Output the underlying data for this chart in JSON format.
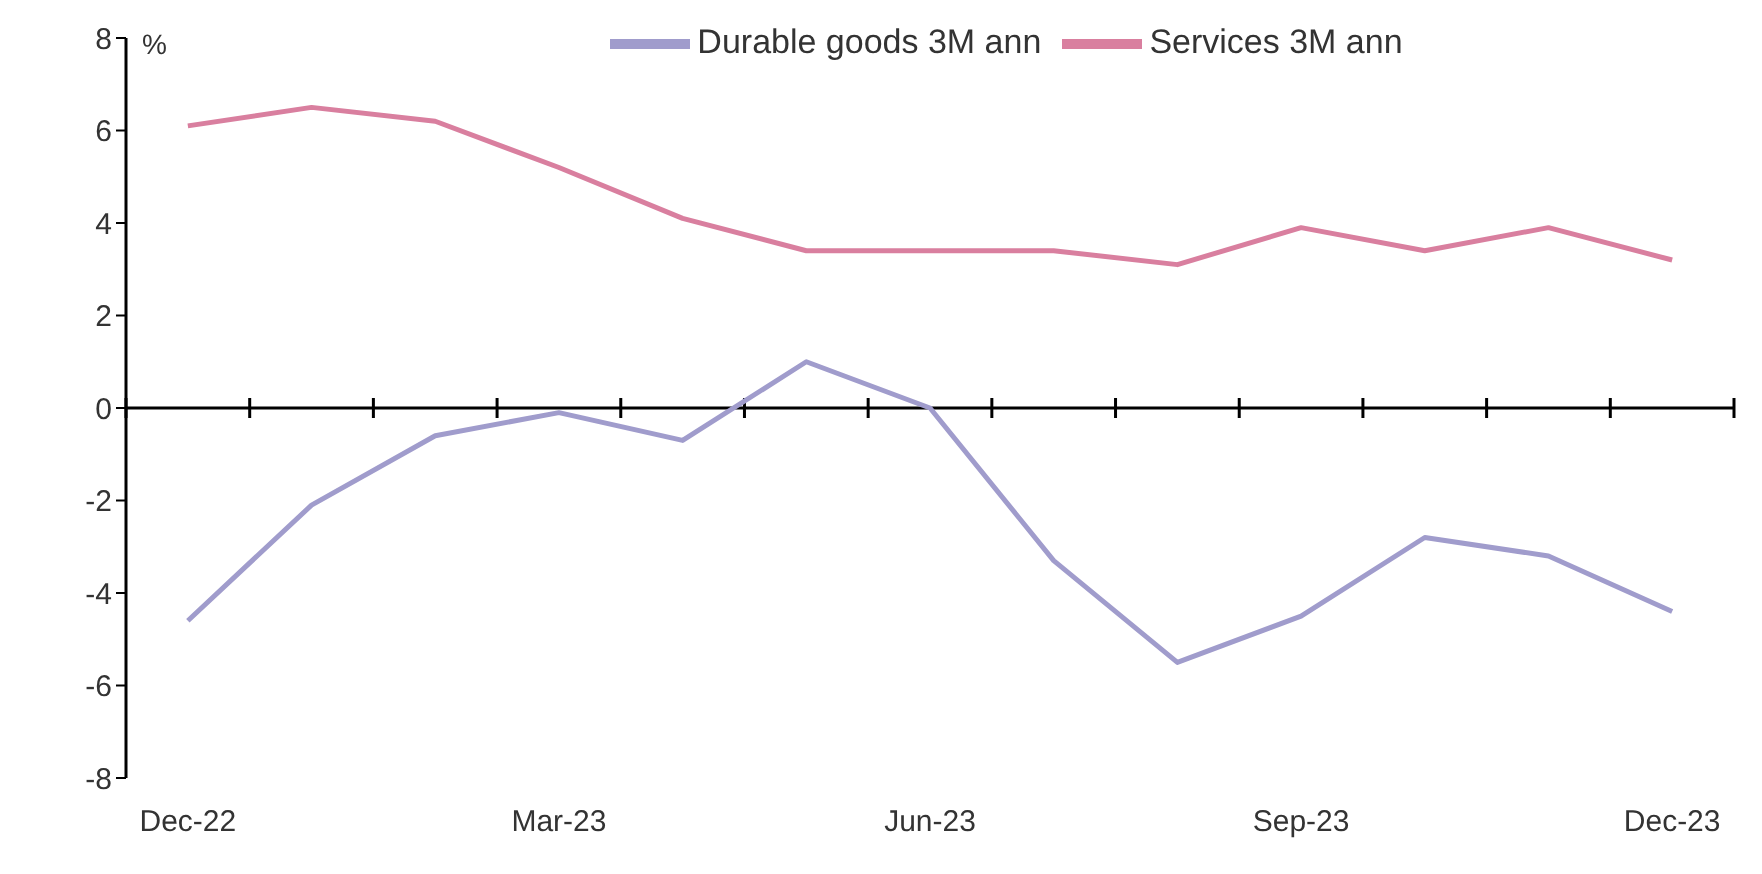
{
  "chart_data": {
    "type": "line",
    "ylabel": "%",
    "categories": [
      "Dec-22",
      null,
      null,
      "Mar-23",
      null,
      null,
      "Jun-23",
      null,
      null,
      "Sep-23",
      null,
      null,
      "Dec-23"
    ],
    "series": [
      {
        "name": "Durable goods 3M ann",
        "color": "#a09ccc",
        "values": [
          -4.6,
          -2.1,
          -0.6,
          -0.1,
          -0.7,
          1.0,
          0.0,
          -3.3,
          -5.5,
          -4.5,
          -2.8,
          -3.2,
          -4.4
        ]
      },
      {
        "name": "Services 3M ann",
        "color": "#d97f9f",
        "values": [
          6.1,
          6.5,
          6.2,
          5.2,
          4.1,
          3.4,
          3.4,
          3.4,
          3.1,
          3.9,
          3.4,
          3.9,
          3.2
        ]
      }
    ],
    "ylim": [
      -8,
      8
    ],
    "yticks": [
      -8,
      -6,
      -4,
      -2,
      0,
      2,
      4,
      6,
      8
    ],
    "ref_lines": [
      {
        "axis": "y",
        "value": 0,
        "color": "#000000"
      }
    ],
    "grid": false,
    "legend": "top",
    "marker": "none",
    "line_style": "solid"
  }
}
